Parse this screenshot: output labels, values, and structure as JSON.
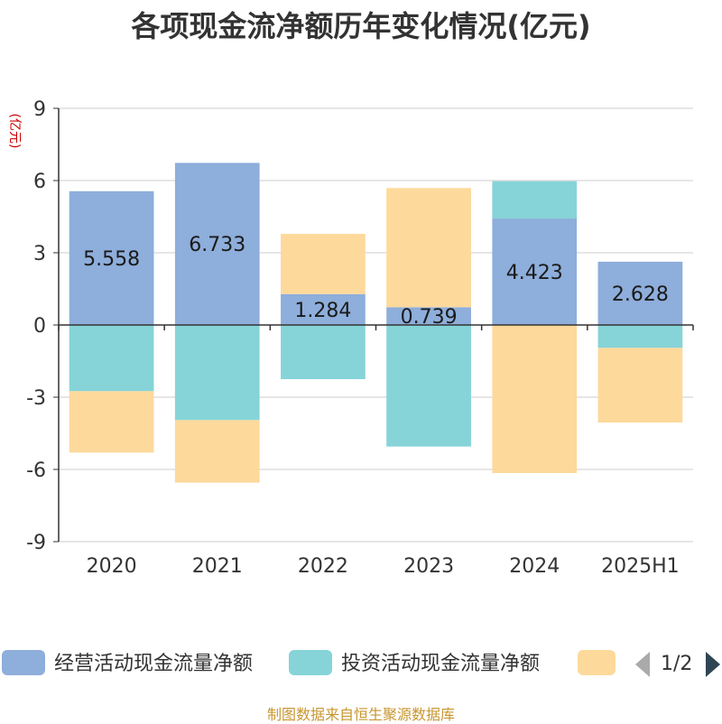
{
  "chart_data": {
    "type": "bar",
    "stacked": true,
    "title": "各项现金流净额历年变化情况(亿元)",
    "ylabel": "(亿元)",
    "ylim": [
      -9,
      9
    ],
    "yticks": [
      9,
      6,
      3,
      0,
      -3,
      -6,
      -9
    ],
    "grid": true,
    "legend": "bottom",
    "categories": [
      "2020",
      "2021",
      "2022",
      "2023",
      "2024",
      "2025H1"
    ],
    "series": [
      {
        "name": "经营活动现金流量净额",
        "color": "#8eaedb",
        "values": [
          5.558,
          6.733,
          1.284,
          0.739,
          4.423,
          2.628
        ]
      },
      {
        "name": "投资活动现金流量净额",
        "color": "#86d4d8",
        "values": [
          -2.75,
          -3.95,
          -2.25,
          -5.05,
          1.55,
          -0.95
        ]
      },
      {
        "name": "",
        "color": "#fdd99b",
        "values": [
          -2.55,
          -2.6,
          2.5,
          4.95,
          -6.15,
          -3.1
        ]
      }
    ],
    "data_labels_series": 0
  },
  "legend_page": "1/2",
  "source_note": "制图数据来自恒生聚源数据库"
}
